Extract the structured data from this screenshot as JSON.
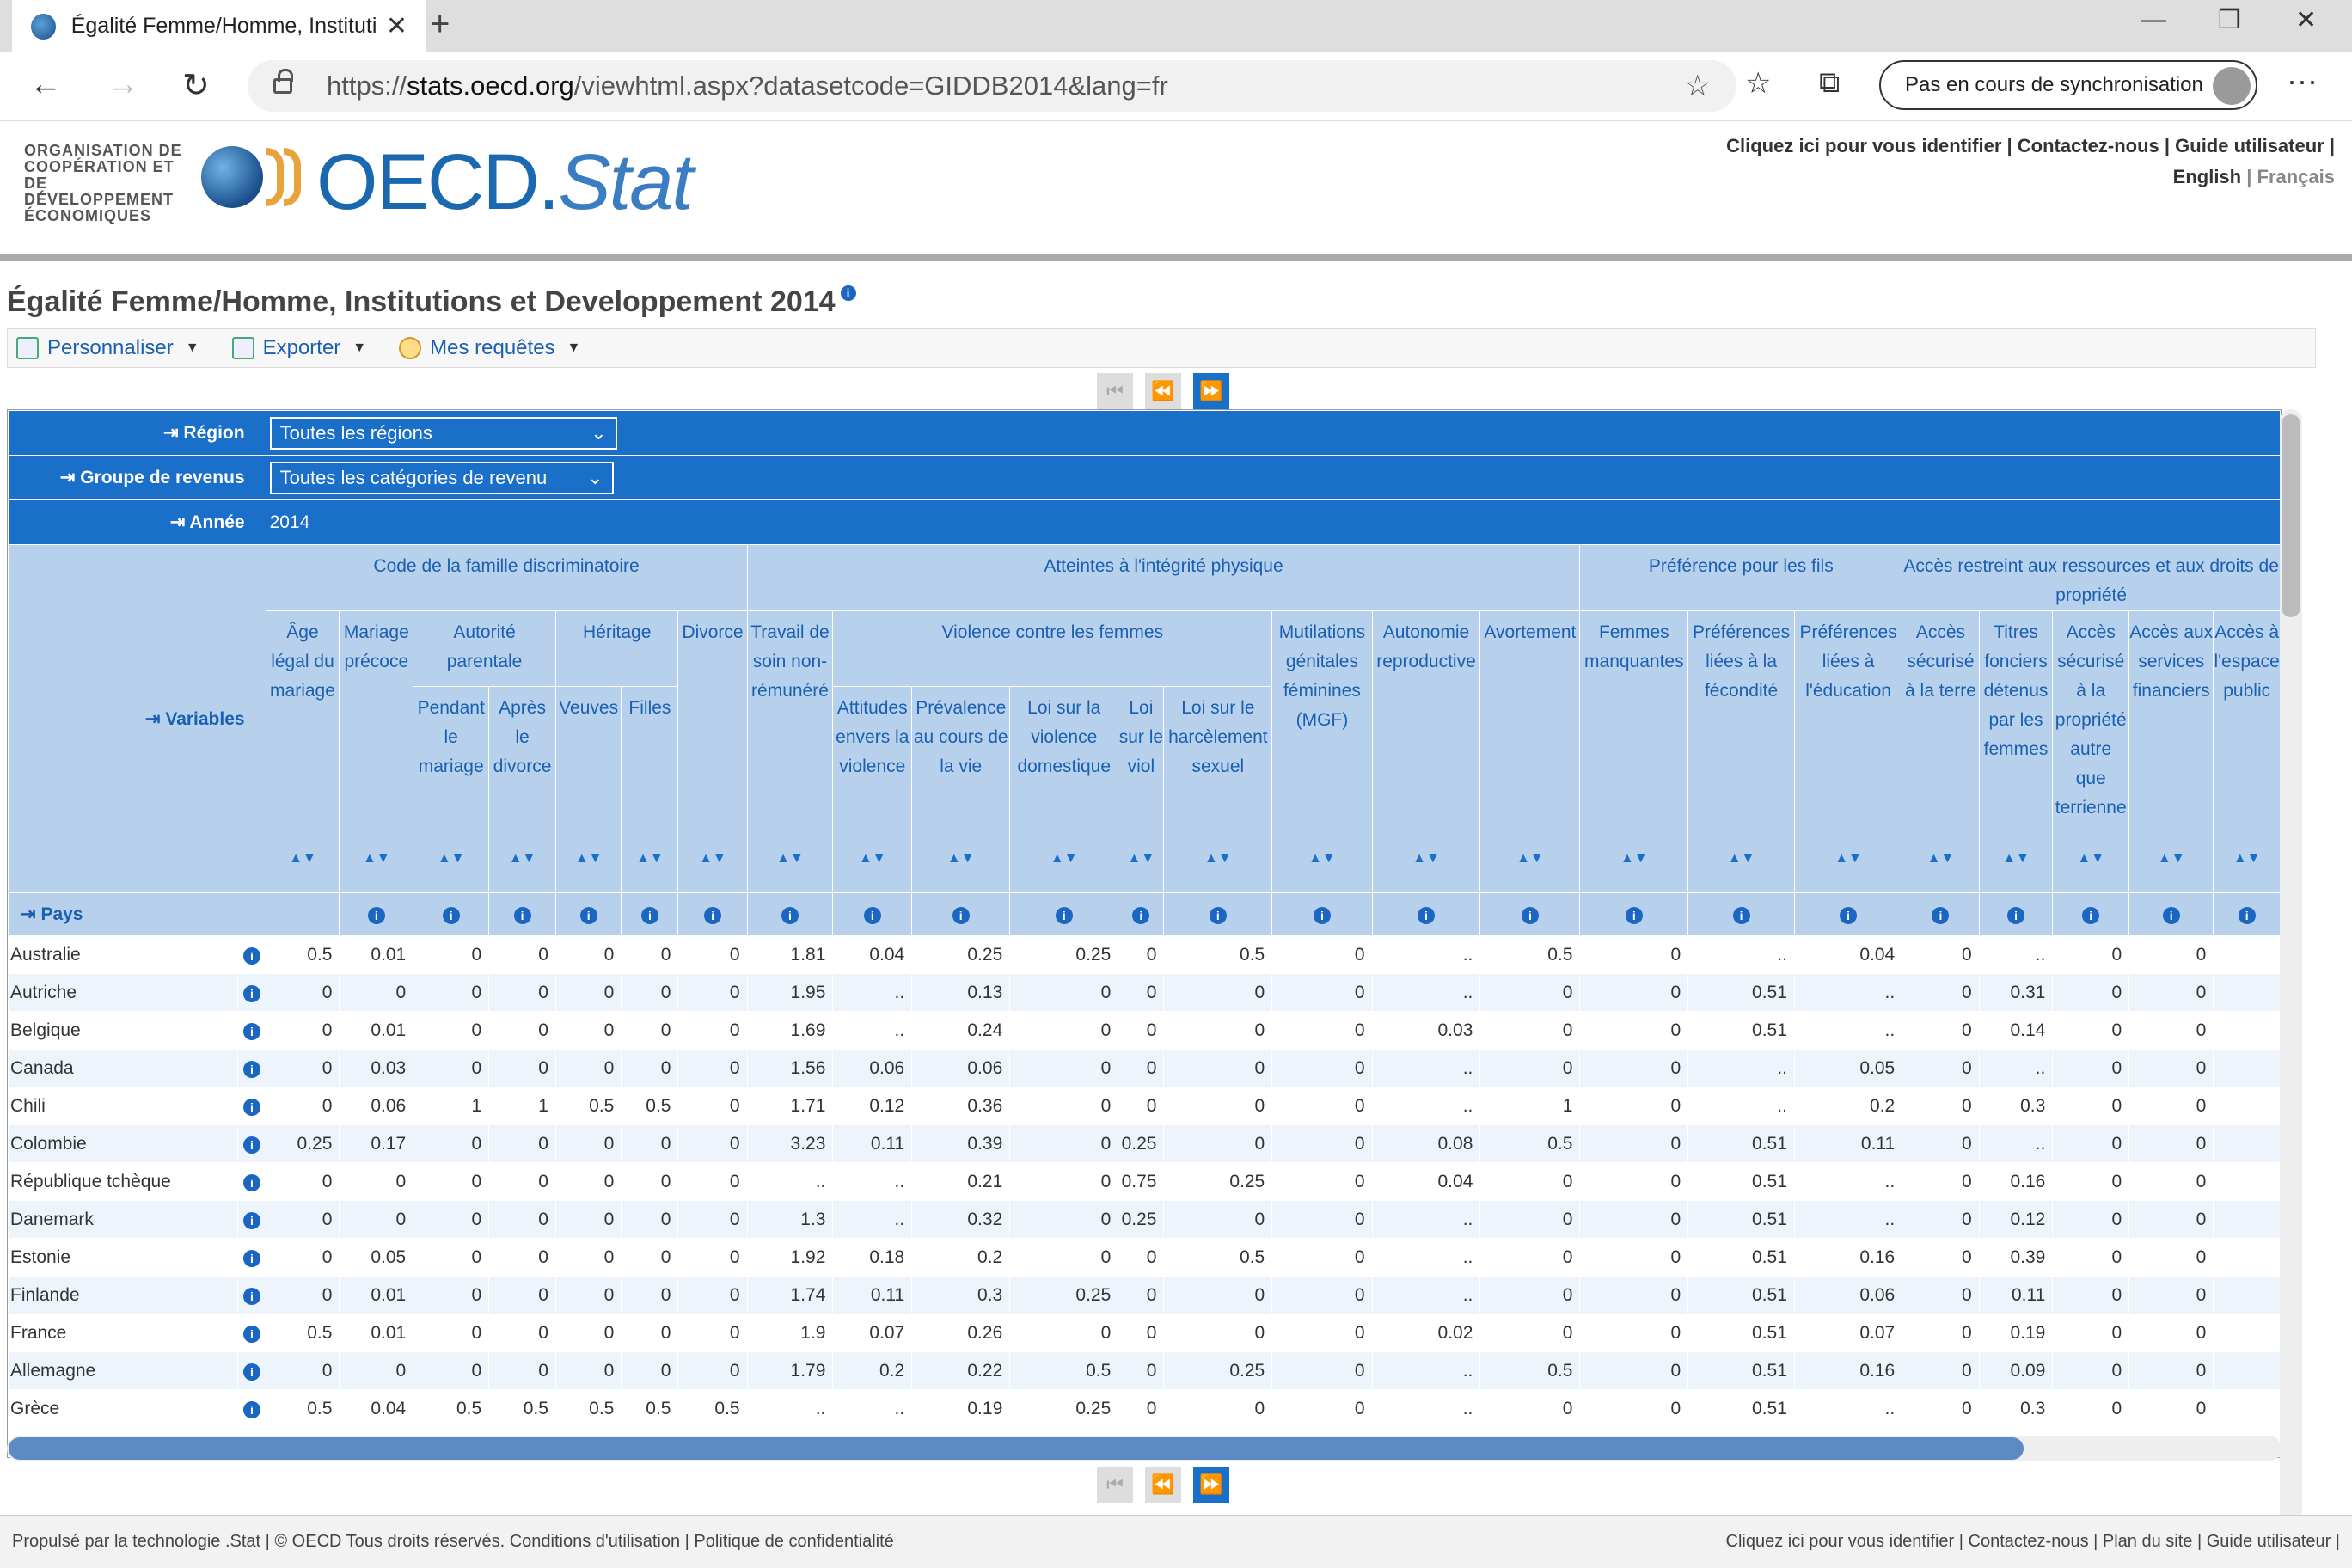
{
  "browser": {
    "tab_title": "Égalité Femme/Homme, Instituti",
    "url_prefix": "https://",
    "url_domain": "stats.oecd.org",
    "url_rest": "/viewhtml.aspx?datasetcode=GIDDB2014&lang=fr",
    "sync_label": "Pas en cours de synchronisation"
  },
  "header": {
    "org_text": "ORGANISATION DE COOPÉRATION ET DE DÉVELOPPEMENT ÉCONOMIQUES",
    "brand_oecd": "OECD.",
    "brand_stat": "Stat",
    "links": "Cliquez ici pour vous identifier | Contactez-nous |  Guide utilisateur |",
    "lang_en": "English",
    "lang_sep": " | ",
    "lang_fr": "Français"
  },
  "title": "Égalité Femme/Homme, Institutions et Developpement 2014",
  "menu": {
    "customize": "Personnaliser",
    "export": "Exporter",
    "queries": "Mes requêtes"
  },
  "dims": {
    "region_label": "Région",
    "region_value": "Toutes les régions",
    "income_label": "Groupe de revenus",
    "income_value": "Toutes les catégories de revenu",
    "year_label": "Année",
    "year_value": "2014",
    "variables_label": "Variables",
    "pays_label": "Pays"
  },
  "groups": {
    "g1": "Code de la famille discriminatoire",
    "g2": "Atteintes à l'intégrité physique",
    "g3": "Préférence pour les fils",
    "g4": "Accès restreint aux ressources et aux droits de propriété",
    "sub_autorite": "Autorité parentale",
    "sub_heritage": "Héritage",
    "sub_violence": "Violence contre les femmes"
  },
  "cols": {
    "c1": "Âge légal du mariage",
    "c2": "Mariage précoce",
    "c3": "Pendant le mariage",
    "c4": "Après le divorce",
    "c5": "Veuves",
    "c6": "Filles",
    "c7": "Divorce",
    "c8": "Travail de soin non-rémunéré",
    "c9": "Attitudes envers la violence",
    "c10": "Prévalence au cours de la vie",
    "c11": "Loi sur la violence domestique",
    "c12": "Loi sur le viol",
    "c13": "Loi sur le harcèlement sexuel",
    "c14": "Mutilations génitales féminines (MGF)",
    "c15": "Autonomie reproductive",
    "c16": "Avortement",
    "c17": "Femmes manquantes",
    "c18": "Préférences liées à la fécondité",
    "c19": "Préférences liées à l'éducation",
    "c20": "Accès sécurisé à la terre",
    "c21": "Titres fonciers détenus par les femmes",
    "c22": "Accès sécurisé à la propriété autre que terrienne",
    "c23": "Accès aux services financiers",
    "c24": "Accès à l'espace public"
  },
  "rows": [
    {
      "country": "Australie",
      "values": [
        "0.5",
        "0.01",
        "0",
        "0",
        "0",
        "0",
        "0",
        "1.81",
        "0.04",
        "0.25",
        "0.25",
        "0",
        "0.5",
        "0",
        "..",
        "0.5",
        "0",
        "..",
        "0.04",
        "0",
        "..",
        "0",
        "0",
        ""
      ]
    },
    {
      "country": "Autriche",
      "values": [
        "0",
        "0",
        "0",
        "0",
        "0",
        "0",
        "0",
        "1.95",
        "..",
        "0.13",
        "0",
        "0",
        "0",
        "0",
        "..",
        "0",
        "0",
        "0.51",
        "..",
        "0",
        "0.31",
        "0",
        "0",
        ""
      ]
    },
    {
      "country": "Belgique",
      "values": [
        "0",
        "0.01",
        "0",
        "0",
        "0",
        "0",
        "0",
        "1.69",
        "..",
        "0.24",
        "0",
        "0",
        "0",
        "0",
        "0.03",
        "0",
        "0",
        "0.51",
        "..",
        "0",
        "0.14",
        "0",
        "0",
        ""
      ]
    },
    {
      "country": "Canada",
      "values": [
        "0",
        "0.03",
        "0",
        "0",
        "0",
        "0",
        "0",
        "1.56",
        "0.06",
        "0.06",
        "0",
        "0",
        "0",
        "0",
        "..",
        "0",
        "0",
        "..",
        "0.05",
        "0",
        "..",
        "0",
        "0",
        ""
      ]
    },
    {
      "country": "Chili",
      "values": [
        "0",
        "0.06",
        "1",
        "1",
        "0.5",
        "0.5",
        "0",
        "1.71",
        "0.12",
        "0.36",
        "0",
        "0",
        "0",
        "0",
        "..",
        "1",
        "0",
        "..",
        "0.2",
        "0",
        "0.3",
        "0",
        "0",
        ""
      ]
    },
    {
      "country": "Colombie",
      "values": [
        "0.25",
        "0.17",
        "0",
        "0",
        "0",
        "0",
        "0",
        "3.23",
        "0.11",
        "0.39",
        "0",
        "0.25",
        "0",
        "0",
        "0.08",
        "0.5",
        "0",
        "0.51",
        "0.11",
        "0",
        "..",
        "0",
        "0",
        ""
      ]
    },
    {
      "country": "République tchèque",
      "values": [
        "0",
        "0",
        "0",
        "0",
        "0",
        "0",
        "0",
        "..",
        "..",
        "0.21",
        "0",
        "0.75",
        "0.25",
        "0",
        "0.04",
        "0",
        "0",
        "0.51",
        "..",
        "0",
        "0.16",
        "0",
        "0",
        ""
      ]
    },
    {
      "country": "Danemark",
      "values": [
        "0",
        "0",
        "0",
        "0",
        "0",
        "0",
        "0",
        "1.3",
        "..",
        "0.32",
        "0",
        "0.25",
        "0",
        "0",
        "..",
        "0",
        "0",
        "0.51",
        "..",
        "0",
        "0.12",
        "0",
        "0",
        ""
      ]
    },
    {
      "country": "Estonie",
      "values": [
        "0",
        "0.05",
        "0",
        "0",
        "0",
        "0",
        "0",
        "1.92",
        "0.18",
        "0.2",
        "0",
        "0",
        "0.5",
        "0",
        "..",
        "0",
        "0",
        "0.51",
        "0.16",
        "0",
        "0.39",
        "0",
        "0",
        ""
      ]
    },
    {
      "country": "Finlande",
      "values": [
        "0",
        "0.01",
        "0",
        "0",
        "0",
        "0",
        "0",
        "1.74",
        "0.11",
        "0.3",
        "0.25",
        "0",
        "0",
        "0",
        "..",
        "0",
        "0",
        "0.51",
        "0.06",
        "0",
        "0.11",
        "0",
        "0",
        ""
      ]
    },
    {
      "country": "France",
      "values": [
        "0.5",
        "0.01",
        "0",
        "0",
        "0",
        "0",
        "0",
        "1.9",
        "0.07",
        "0.26",
        "0",
        "0",
        "0",
        "0",
        "0.02",
        "0",
        "0",
        "0.51",
        "0.07",
        "0",
        "0.19",
        "0",
        "0",
        ""
      ]
    },
    {
      "country": "Allemagne",
      "values": [
        "0",
        "0",
        "0",
        "0",
        "0",
        "0",
        "0",
        "1.79",
        "0.2",
        "0.22",
        "0.5",
        "0",
        "0.25",
        "0",
        "..",
        "0.5",
        "0",
        "0.51",
        "0.16",
        "0",
        "0.09",
        "0",
        "0",
        ""
      ]
    },
    {
      "country": "Grèce",
      "values": [
        "0.5",
        "0.04",
        "0.5",
        "0.5",
        "0.5",
        "0.5",
        "0.5",
        "..",
        "..",
        "0.19",
        "0.25",
        "0",
        "0",
        "0",
        "..",
        "0",
        "0",
        "0.51",
        "..",
        "0",
        "0.3",
        "0",
        "0",
        ""
      ]
    }
  ],
  "footer": {
    "left": "Propulsé par la technologie .Stat | © OECD Tous droits réservés. Conditions d'utilisation |  Politique de confidentialité",
    "right": "Cliquez ici pour vous identifier | Contactez-nous |  Plan du site |  Guide utilisateur |"
  }
}
